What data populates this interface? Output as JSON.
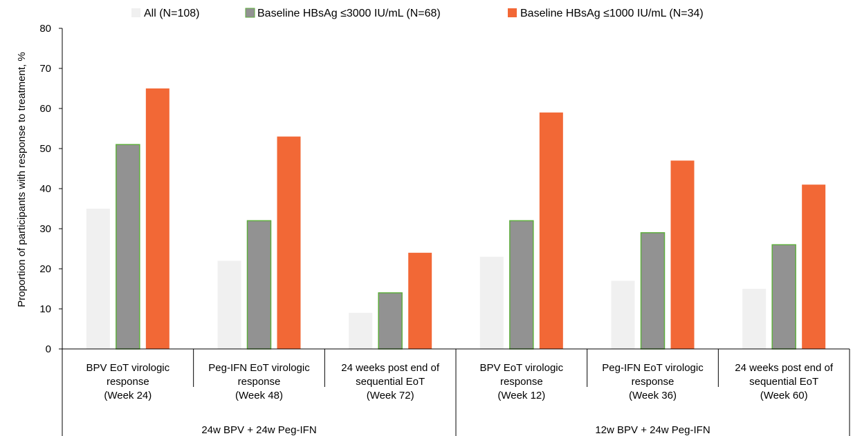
{
  "chart_data": {
    "type": "bar",
    "title": "",
    "xlabel": "",
    "ylabel": "Proportion of participants with response to treatment, %",
    "ylim": [
      0,
      80
    ],
    "yticks": [
      0,
      10,
      20,
      30,
      40,
      50,
      60,
      70,
      80
    ],
    "grid": false,
    "legend_position": "top",
    "categories": [
      [
        "BPV EoT virologic",
        "response",
        "(Week 24)"
      ],
      [
        "Peg-IFN EoT virologic",
        "response",
        "(Week 48)"
      ],
      [
        "24 weeks post end of",
        "sequential EoT",
        "(Week 72)"
      ],
      [
        "BPV EoT virologic",
        "response",
        "(Week 12)"
      ],
      [
        "Peg-IFN EoT virologic",
        "response",
        "(Week 36)"
      ],
      [
        "24 weeks post end of",
        "sequential EoT",
        "(Week 60)"
      ]
    ],
    "groups": [
      {
        "label": "24w BPV + 24w Peg-IFN",
        "categories": [
          0,
          1,
          2
        ]
      },
      {
        "label": "12w BPV + 24w Peg-IFN",
        "categories": [
          3,
          4,
          5
        ]
      }
    ],
    "series": [
      {
        "name": "All (N=108)",
        "color": "#f0f0f0",
        "stroke": "none",
        "values": [
          35,
          22,
          9,
          23,
          17,
          15
        ]
      },
      {
        "name": "Baseline HBsAg ≤3000 IU/mL (N=68)",
        "color": "#929292",
        "stroke": "#5fae3e",
        "values": [
          51,
          32,
          14,
          32,
          29,
          26
        ]
      },
      {
        "name": "Baseline HBsAg ≤1000 IU/mL (N=34)",
        "color": "#f26836",
        "stroke": "none",
        "values": [
          65,
          53,
          24,
          59,
          47,
          41
        ]
      }
    ]
  }
}
